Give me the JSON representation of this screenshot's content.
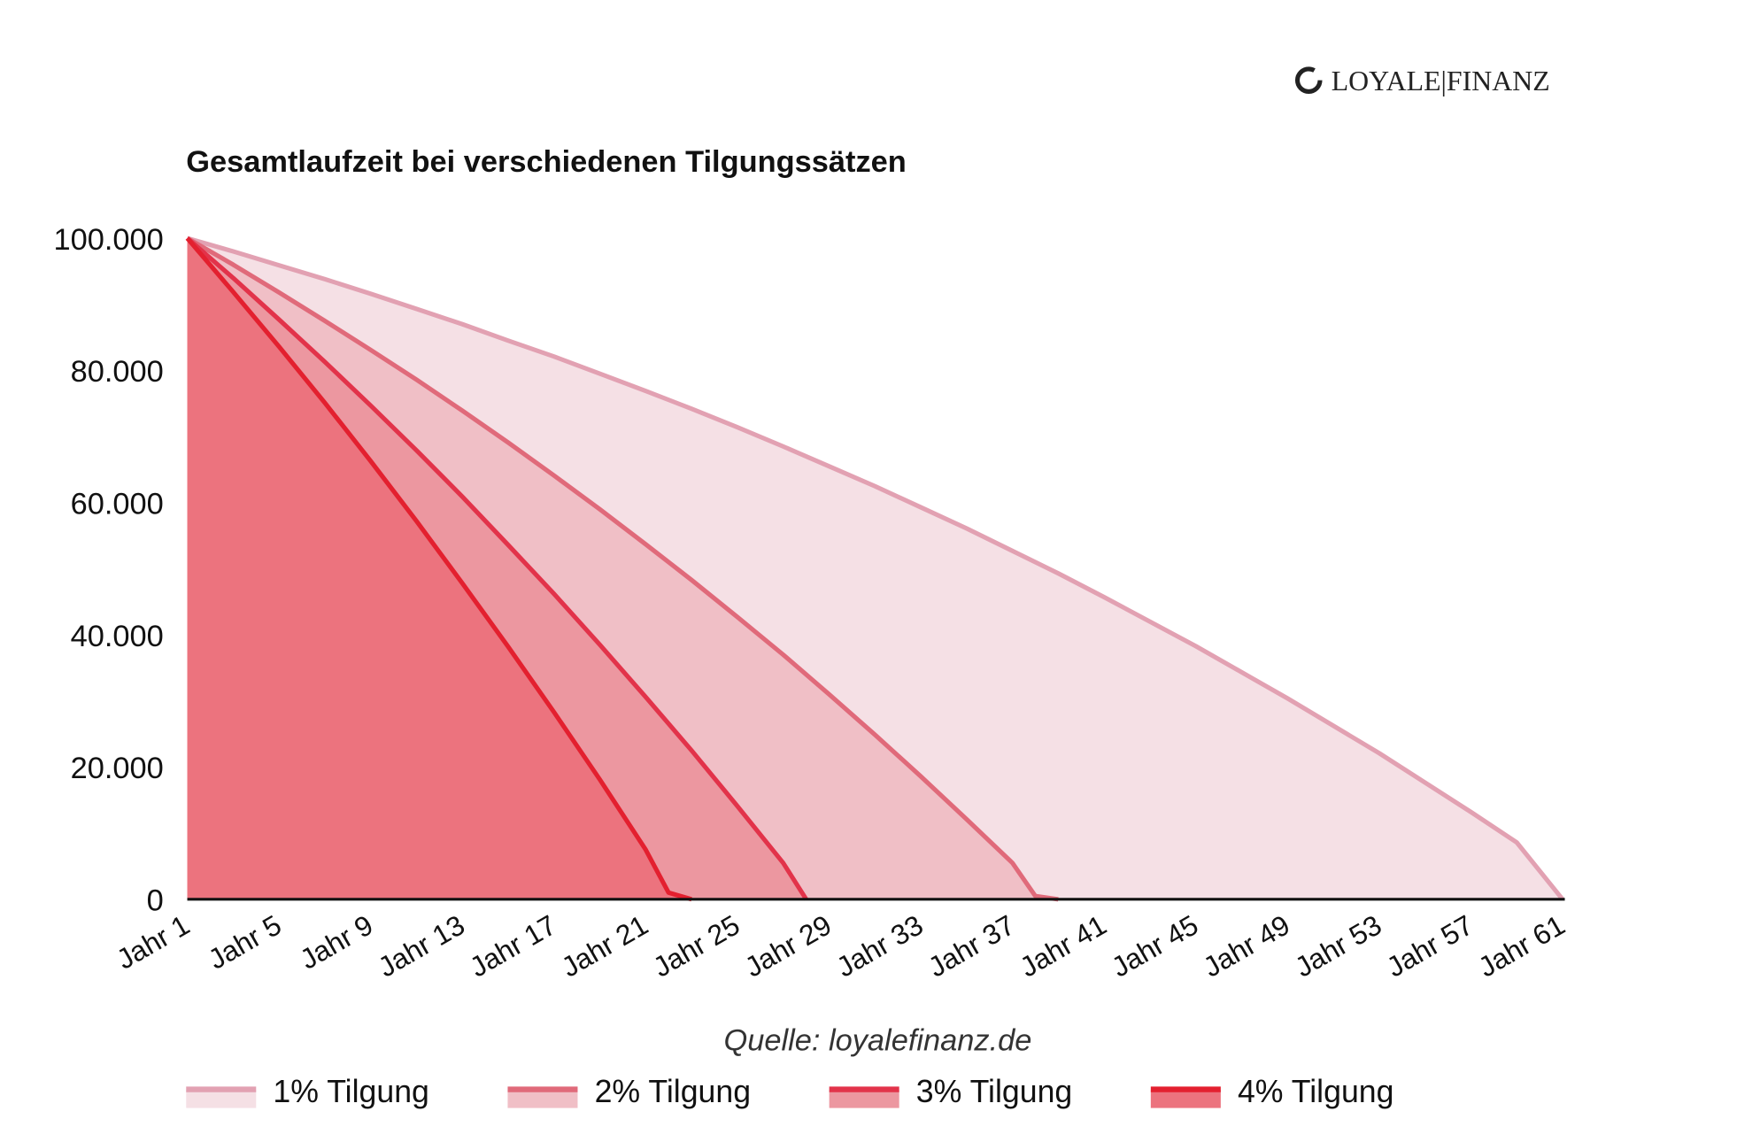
{
  "brand": {
    "logo_text": "LOYALE|FINANZ"
  },
  "chart_data": {
    "type": "area",
    "title": "Gesamtlaufzeit bei verschiedenen Tilgungssätzen",
    "source": "Quelle: loyalefinanz.de",
    "xlabel": "",
    "ylabel": "",
    "x_range": [
      1,
      61
    ],
    "ylim": [
      0,
      100000
    ],
    "y_ticks": [
      0,
      20000,
      40000,
      60000,
      80000,
      100000
    ],
    "y_tick_labels": [
      "0",
      "20.000",
      "40.000",
      "60.000",
      "80.000",
      "100.000"
    ],
    "x_ticks": [
      1,
      5,
      9,
      13,
      17,
      21,
      25,
      29,
      33,
      37,
      41,
      45,
      49,
      53,
      57,
      61
    ],
    "x_tick_labels": [
      "Jahr 1",
      "Jahr 5",
      "Jahr 9",
      "Jahr 13",
      "Jahr 17",
      "Jahr 21",
      "Jahr 25",
      "Jahr 29",
      "Jahr 33",
      "Jahr 37",
      "Jahr 41",
      "Jahr 45",
      "Jahr 49",
      "Jahr 53",
      "Jahr 57",
      "Jahr 61"
    ],
    "grid": false,
    "legend_position": "bottom",
    "series": [
      {
        "name": "1% Tilgung",
        "stroke": "#e2a1b2",
        "fill": "#f5e0e5",
        "x": [
          1,
          3,
          5,
          7,
          9,
          11,
          13,
          15,
          17,
          19,
          21,
          23,
          25,
          27,
          29,
          31,
          33,
          35,
          37,
          39,
          41,
          45,
          49,
          53,
          57,
          59,
          61
        ],
        "y": [
          100000,
          98000,
          95900,
          93800,
          91600,
          89300,
          87000,
          84500,
          82100,
          79500,
          76900,
          74200,
          71400,
          68500,
          65500,
          62500,
          59300,
          56100,
          52700,
          49300,
          45700,
          38300,
          30400,
          22100,
          13200,
          8600,
          0
        ]
      },
      {
        "name": "2% Tilgung",
        "stroke": "#e06a7a",
        "fill": "#f0bfc6",
        "x": [
          1,
          3,
          5,
          7,
          9,
          11,
          13,
          15,
          17,
          19,
          21,
          23,
          25,
          27,
          29,
          31,
          33,
          35,
          37,
          38,
          39
        ],
        "y": [
          100000,
          96000,
          91800,
          87500,
          83100,
          78600,
          73900,
          69100,
          64100,
          59000,
          53700,
          48300,
          42700,
          37000,
          31000,
          24900,
          18600,
          12100,
          5500,
          500,
          0
        ]
      },
      {
        "name": "3% Tilgung",
        "stroke": "#e2334a",
        "fill": "#ec97a0",
        "x": [
          1,
          3,
          5,
          7,
          9,
          11,
          13,
          15,
          17,
          19,
          21,
          23,
          25,
          27,
          28
        ],
        "y": [
          100000,
          94000,
          87700,
          81300,
          74700,
          67900,
          60900,
          53600,
          46200,
          38500,
          30600,
          22500,
          14100,
          5500,
          0
        ]
      },
      {
        "name": "4% Tilgung",
        "stroke": "#e3202f",
        "fill": "#ec737e",
        "x": [
          1,
          3,
          5,
          7,
          9,
          11,
          13,
          15,
          17,
          19,
          21,
          22,
          23
        ],
        "y": [
          100000,
          91900,
          83600,
          75100,
          66300,
          57200,
          47800,
          38200,
          28300,
          18100,
          7500,
          1000,
          0
        ]
      }
    ]
  }
}
